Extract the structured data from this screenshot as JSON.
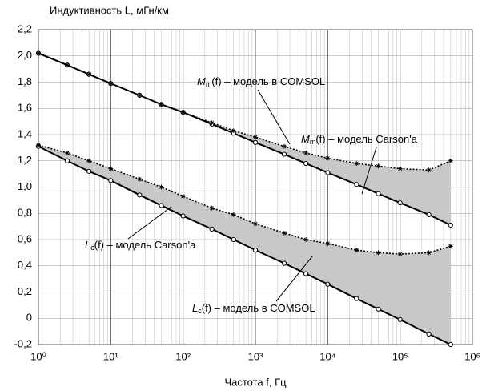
{
  "chart_data": {
    "type": "line",
    "y_label": "Индуктивность L, мГн/км",
    "x_label": "Частота f, Гц",
    "log_x": true,
    "grid": true,
    "xlim": [
      1,
      1000000
    ],
    "xticks": [
      {
        "value": 1,
        "label": "10⁰"
      },
      {
        "value": 10,
        "label": "10¹"
      },
      {
        "value": 100,
        "label": "10²"
      },
      {
        "value": 1000,
        "label": "10³"
      },
      {
        "value": 10000,
        "label": "10⁴"
      },
      {
        "value": 100000,
        "label": "10⁵"
      },
      {
        "value": 1000000,
        "label": "10⁶"
      }
    ],
    "ylim": [
      -0.2,
      2.2
    ],
    "yticks": [
      {
        "value": -0.2,
        "label": "-0,2"
      },
      0,
      {
        "value": 0.2,
        "label": "0,2"
      },
      {
        "value": 0.4,
        "label": "0,4"
      },
      {
        "value": 0.6,
        "label": "0,6"
      },
      {
        "value": 0.8,
        "label": "0,8"
      },
      {
        "value": 1.0,
        "label": "1,0"
      },
      {
        "value": 1.2,
        "label": "1,2"
      },
      {
        "value": 1.4,
        "label": "1,4"
      },
      {
        "value": 1.6,
        "label": "1,6"
      },
      {
        "value": 1.8,
        "label": "1,8"
      },
      {
        "value": 2.0,
        "label": "2,0"
      },
      {
        "value": 2.2,
        "label": "2,2"
      }
    ],
    "x": [
      1,
      2.5,
      5,
      10,
      25,
      50,
      100,
      250,
      500,
      1000,
      2500,
      5000,
      10000,
      25000,
      50000,
      100000,
      250000,
      500000
    ],
    "series": [
      {
        "name": "Mm Carson",
        "color": "#000000",
        "style": "solid",
        "marker": "circle",
        "values": [
          2.02,
          1.93,
          1.86,
          1.79,
          1.7,
          1.63,
          1.57,
          1.48,
          1.41,
          1.34,
          1.25,
          1.18,
          1.11,
          1.02,
          0.95,
          0.88,
          0.79,
          0.71
        ]
      },
      {
        "name": "Mm COMSOL",
        "color": "#000000",
        "style": "dotted",
        "marker": "star",
        "values": [
          2.02,
          1.93,
          1.86,
          1.79,
          1.7,
          1.63,
          1.57,
          1.49,
          1.43,
          1.38,
          1.31,
          1.26,
          1.22,
          1.18,
          1.16,
          1.14,
          1.13,
          1.2
        ]
      },
      {
        "name": "Lc Carson",
        "color": "#000000",
        "style": "solid",
        "marker": "circle",
        "values": [
          1.31,
          1.2,
          1.12,
          1.05,
          0.94,
          0.86,
          0.78,
          0.68,
          0.6,
          0.52,
          0.42,
          0.34,
          0.26,
          0.15,
          0.07,
          -0.01,
          -0.12,
          -0.2
        ]
      },
      {
        "name": "Lc COMSOL",
        "color": "#000000",
        "style": "dotted",
        "marker": "star",
        "values": [
          1.32,
          1.26,
          1.2,
          1.14,
          1.06,
          1.0,
          0.93,
          0.84,
          0.79,
          0.72,
          0.65,
          0.6,
          0.57,
          0.52,
          0.5,
          0.49,
          0.5,
          0.55
        ]
      }
    ],
    "fill_color": "#c8c8c8",
    "annotations": [
      {
        "symbol": "M",
        "sub": "m",
        "text": "(f) – модель в COMSOL"
      },
      {
        "symbol": "M",
        "sub": "m",
        "text": "(f) – модель Carson'a"
      },
      {
        "symbol": "L",
        "sub": "c",
        "text": "(f) – модель Carson'a"
      },
      {
        "symbol": "L",
        "sub": "c",
        "text": "(f) – модель в COMSOL"
      }
    ]
  }
}
